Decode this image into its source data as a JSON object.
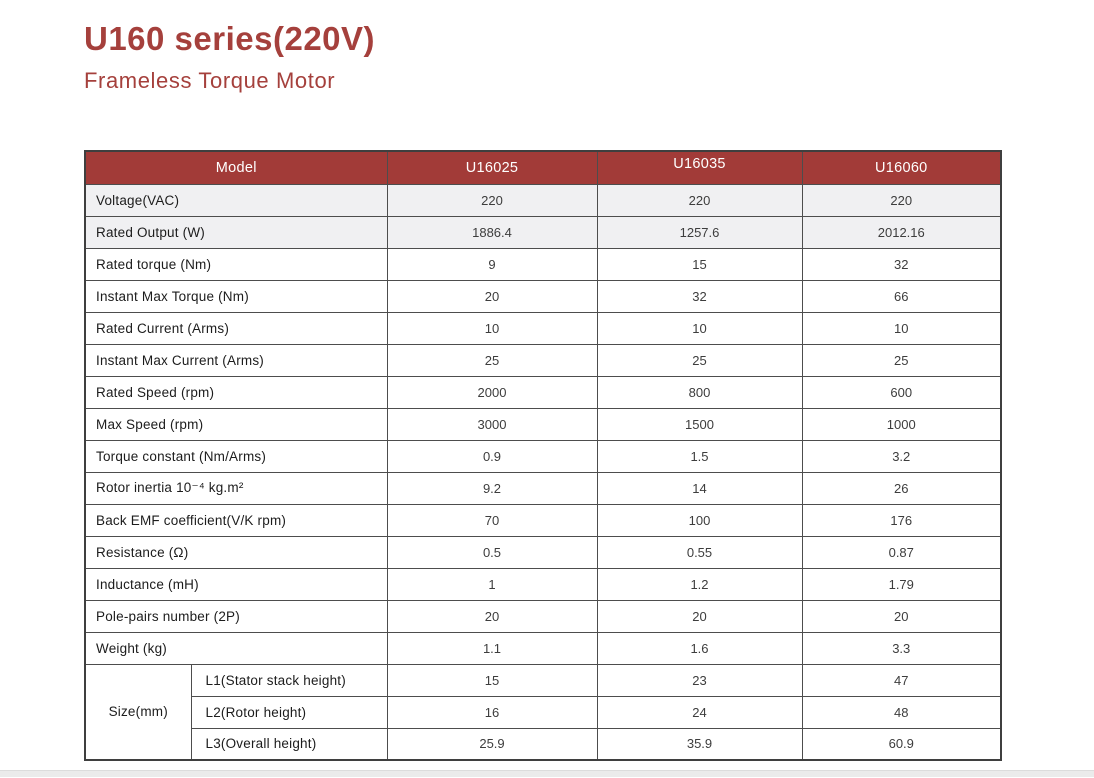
{
  "header": {
    "title": "U160 series(220V)",
    "subtitle": "Frameless Torque Motor"
  },
  "colors": {
    "accent_red": "#A23B38",
    "title_red": "#A5403C",
    "shaded_row_bg": "#F0F0F2",
    "border": "#4D4D4D",
    "header_text": "#FFFFFF"
  },
  "table": {
    "header": [
      "Model",
      "U16025",
      "U16035",
      "U16060"
    ],
    "rows": [
      {
        "label": "Voltage(VAC)",
        "values": [
          "220",
          "220",
          "220"
        ],
        "shaded": true
      },
      {
        "label": "Rated Output (W)",
        "values": [
          "1886.4",
          "1257.6",
          "2012.16"
        ],
        "shaded": true
      },
      {
        "label": "Rated torque (Nm)",
        "values": [
          "9",
          "15",
          "32"
        ],
        "shaded": false
      },
      {
        "label": "Instant Max Torque (Nm)",
        "values": [
          "20",
          "32",
          "66"
        ],
        "shaded": false
      },
      {
        "label": "Rated Current (Arms)",
        "values": [
          "10",
          "10",
          "10"
        ],
        "shaded": false
      },
      {
        "label": "Instant Max Current (Arms)",
        "values": [
          "25",
          "25",
          "25"
        ],
        "shaded": false
      },
      {
        "label": "Rated Speed (rpm)",
        "values": [
          "2000",
          "800",
          "600"
        ],
        "shaded": false
      },
      {
        "label": "Max  Speed (rpm)",
        "values": [
          "3000",
          "1500",
          "1000"
        ],
        "shaded": false
      },
      {
        "label": "Torque constant (Nm/Arms)",
        "values": [
          "0.9",
          "1.5",
          "3.2"
        ],
        "shaded": false
      },
      {
        "label": "Rotor inertia 10⁻⁴ kg.m²",
        "values": [
          "9.2",
          "14",
          "26"
        ],
        "shaded": false
      },
      {
        "label": "Back EMF coefficient(V/K rpm)",
        "values": [
          "70",
          "100",
          "176"
        ],
        "shaded": false
      },
      {
        "label": "Resistance (Ω)",
        "values": [
          "0.5",
          "0.55",
          "0.87"
        ],
        "shaded": false
      },
      {
        "label": "Inductance (mH)",
        "values": [
          "1",
          "1.2",
          "1.79"
        ],
        "shaded": false
      },
      {
        "label": "Pole-pairs number (2P)",
        "values": [
          "20",
          "20",
          "20"
        ],
        "shaded": false
      },
      {
        "label": "Weight (kg)",
        "values": [
          "1.1",
          "1.6",
          "3.3"
        ],
        "shaded": false
      }
    ],
    "size_group": {
      "label": "Size(mm)",
      "rows": [
        {
          "label": "L1(Stator stack height)",
          "values": [
            "15",
            "23",
            "47"
          ]
        },
        {
          "label": "L2(Rotor height)",
          "values": [
            "16",
            "24",
            "48"
          ]
        },
        {
          "label": "L3(Overall height)",
          "values": [
            "25.9",
            "35.9",
            "60.9"
          ]
        }
      ]
    }
  }
}
